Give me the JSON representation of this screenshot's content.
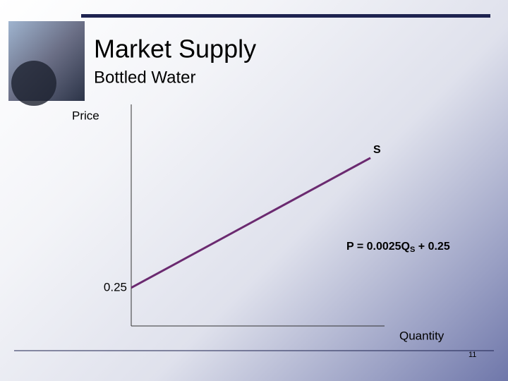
{
  "chart_data": {
    "type": "line",
    "title": "Market Supply",
    "subtitle": "Bottled Water",
    "y_label": "Price",
    "x_label": "Quantity",
    "x": [
      0,
      340
    ],
    "values": [
      0.25,
      1.1
    ],
    "color": "#6b2a70",
    "xlim": [
      0,
      360
    ],
    "ylim": [
      0,
      1.45
    ],
    "yticks": [
      0.25
    ],
    "line_label": "S",
    "equation": {
      "left": "P = 0.0025Q",
      "subscript": "S",
      "right": " + 0.25"
    },
    "page_number": "11"
  }
}
